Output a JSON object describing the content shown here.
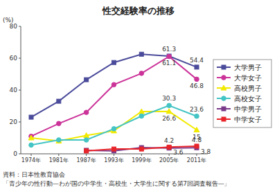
{
  "chart_data": {
    "type": "line",
    "title": "性交経験率の推移",
    "y_label": "(%)",
    "categories": [
      "1974年",
      "1981年",
      "1987年",
      "1993年",
      "1999年",
      "2005年",
      "2011年"
    ],
    "ylim": [
      0,
      80
    ],
    "yticks": [
      0,
      20,
      40,
      60,
      80
    ],
    "grid": false,
    "legend": "right",
    "data_labels": true,
    "series": [
      {
        "name": "大学男子",
        "color": "#4b4b9b",
        "marker": "square",
        "values": [
          23,
          33,
          46.5,
          57.3,
          62.5,
          61.3,
          54.4
        ],
        "value_labels": [
          null,
          null,
          null,
          null,
          null,
          "61.3",
          "54.4"
        ]
      },
      {
        "name": "大学女子",
        "color": "#cc3399",
        "marker": "circle",
        "values": [
          11,
          19,
          26,
          43.4,
          50.5,
          61.1,
          46.8
        ],
        "value_labels": [
          null,
          null,
          null,
          null,
          null,
          "61.1",
          "46.8"
        ]
      },
      {
        "name": "高校男子",
        "color": "#f2ea00",
        "marker": "triangle",
        "values": [
          10,
          8,
          11.5,
          14.4,
          26.5,
          26.6,
          15
        ],
        "value_labels": [
          null,
          null,
          null,
          null,
          null,
          "26.6",
          "15"
        ]
      },
      {
        "name": "高校女子",
        "color": "#44c4c4",
        "marker": "circle",
        "values": [
          5.5,
          8.7,
          8.7,
          15.7,
          23.7,
          30.3,
          23.6
        ],
        "value_labels": [
          null,
          null,
          null,
          null,
          null,
          "30.3",
          "23.6"
        ]
      },
      {
        "name": "中学男子",
        "color": "#7a3a8a",
        "marker": "square",
        "values": [
          null,
          null,
          2.2,
          1.9,
          3.9,
          3.6,
          3.8
        ],
        "value_labels": [
          null,
          null,
          null,
          null,
          null,
          "3.6",
          "3.8"
        ]
      },
      {
        "name": "中学女子",
        "color": "#e8252a",
        "marker": "square",
        "values": [
          null,
          null,
          1.8,
          3.0,
          3.0,
          4.2,
          4.8
        ],
        "value_labels": [
          null,
          null,
          null,
          null,
          null,
          "4.2",
          "4.8"
        ]
      }
    ],
    "source": [
      "資料：日本性教育協会",
      "「青少年の性行動―わが国の中学生・高校生・大学生に関する第7回調査報告―」"
    ]
  }
}
